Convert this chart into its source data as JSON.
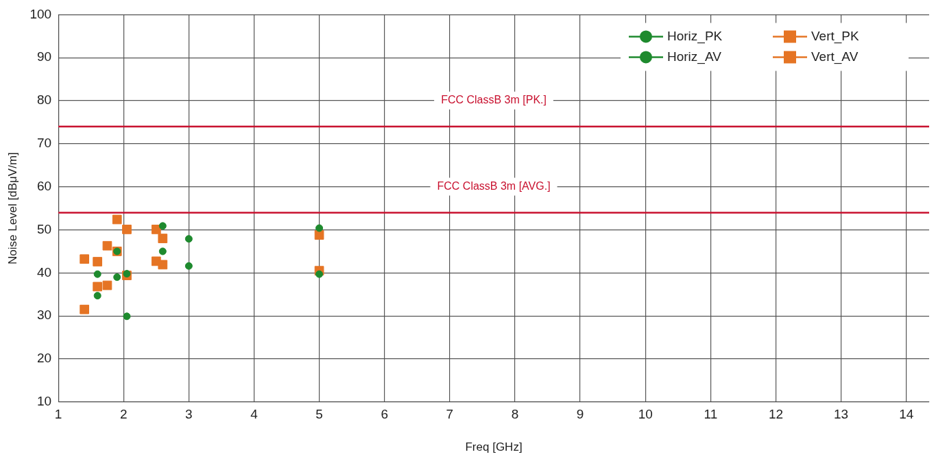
{
  "chart_data": {
    "type": "scatter",
    "xlabel": "Freq [GHz]",
    "ylabel": "Noise Level [dBμV/m]",
    "xlim": [
      1,
      14.35
    ],
    "xticks": [
      1,
      2,
      3,
      4,
      5,
      6,
      7,
      8,
      9,
      10,
      11,
      12,
      13,
      14
    ],
    "ylim": [
      10,
      100
    ],
    "yticks": [
      10,
      20,
      30,
      40,
      50,
      60,
      70,
      80,
      90,
      100
    ],
    "grid": true,
    "legend": "top right",
    "series": [
      {
        "name": "Horiz_PK",
        "color": "#1e8a2e",
        "marker": "circle",
        "x": [
          1.6,
          1.9,
          2.05,
          2.6,
          3.0,
          5.0
        ],
        "values": [
          39.7,
          45,
          39.8,
          50.9,
          47.9,
          50.4
        ]
      },
      {
        "name": "Horiz_AV",
        "color": "#1e8a2e",
        "marker": "circle",
        "x": [
          1.6,
          1.9,
          2.05,
          2.6,
          3.0,
          5.0
        ],
        "values": [
          34.7,
          39,
          29.9,
          45,
          41.6,
          39.7
        ]
      },
      {
        "name": "Vert_PK",
        "color": "#e57424",
        "marker": "square",
        "x": [
          1.4,
          1.6,
          1.75,
          1.9,
          2.05,
          2.5,
          2.6,
          5.0
        ],
        "values": [
          43.2,
          42.6,
          46.3,
          52.4,
          50.1,
          50.1,
          48,
          48.8
        ]
      },
      {
        "name": "Vert_AV",
        "color": "#e57424",
        "marker": "square",
        "x": [
          1.4,
          1.6,
          1.75,
          1.9,
          2.05,
          2.5,
          2.6,
          5.0
        ],
        "values": [
          31.5,
          36.8,
          37.1,
          45,
          39.4,
          42.7,
          41.9,
          40.5
        ]
      }
    ],
    "ref_lines": [
      {
        "axis": "y",
        "value": 74,
        "label": "FCC ClassB 3m [PK.]",
        "color": "#c8102e"
      },
      {
        "axis": "y",
        "value": 54,
        "label": "FCC ClassB 3m [AVG.]",
        "color": "#c8102e"
      }
    ]
  }
}
